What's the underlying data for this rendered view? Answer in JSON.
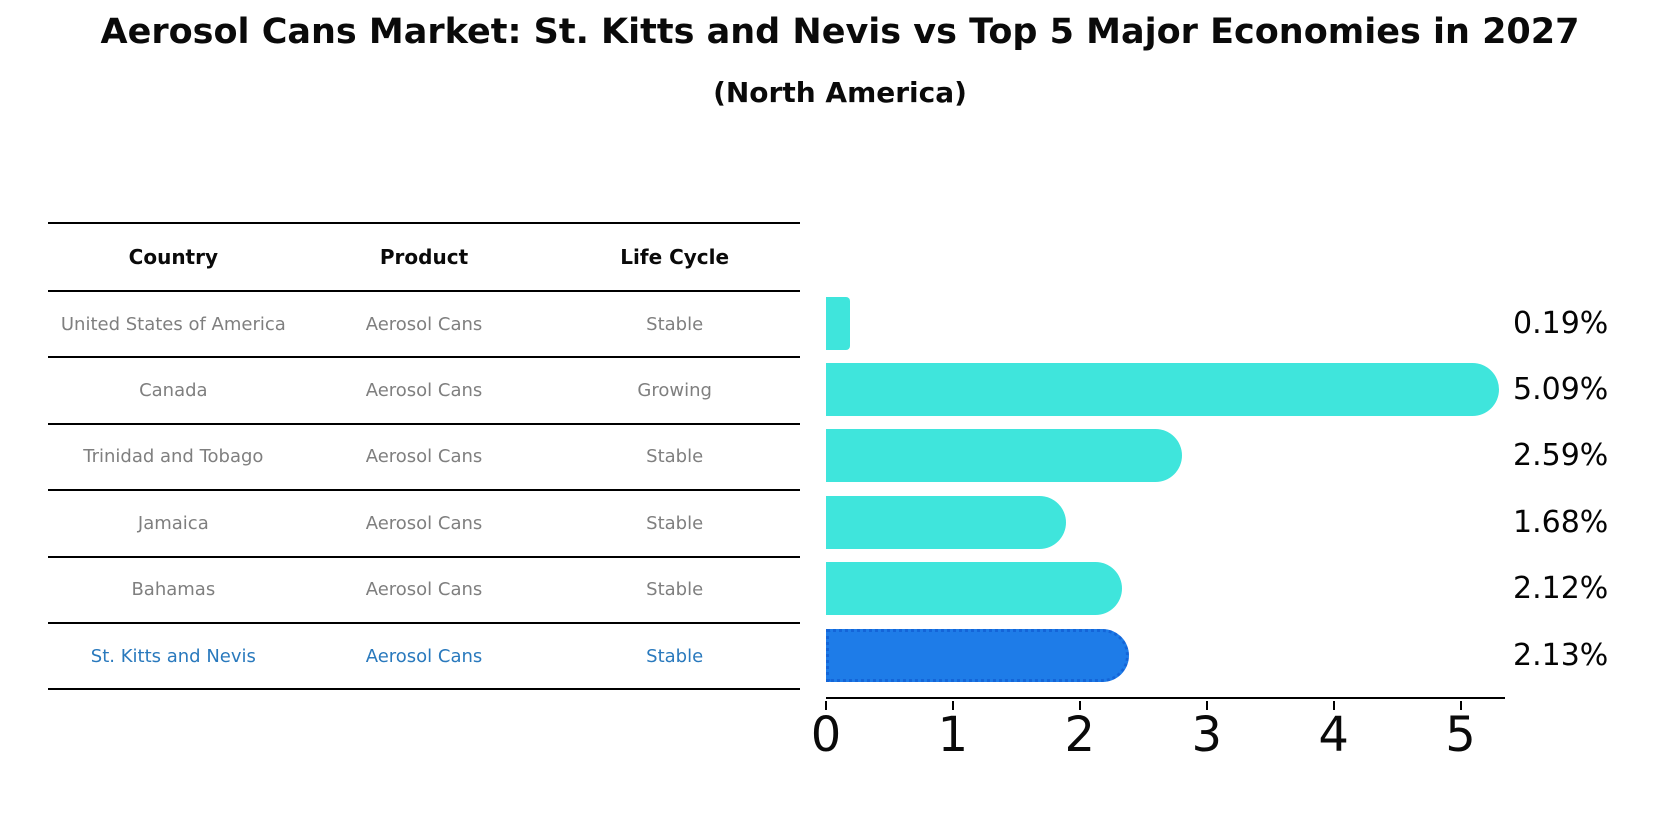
{
  "title": "Aerosol Cans Market: St. Kitts and Nevis vs Top 5 Major Economies in 2027",
  "subtitle": "(North America)",
  "table": {
    "headers": [
      "Country",
      "Product",
      "Life Cycle"
    ],
    "rows": [
      {
        "country": "United States of America",
        "product": "Aerosol Cans",
        "life_cycle": "Stable"
      },
      {
        "country": "Canada",
        "product": "Aerosol Cans",
        "life_cycle": "Growing"
      },
      {
        "country": "Trinidad and Tobago",
        "product": "Aerosol Cans",
        "life_cycle": "Stable"
      },
      {
        "country": "Jamaica",
        "product": "Aerosol Cans",
        "life_cycle": "Stable"
      },
      {
        "country": "Bahamas",
        "product": "Aerosol Cans",
        "life_cycle": "Stable"
      },
      {
        "country": "St. Kitts and Nevis",
        "product": "Aerosol Cans",
        "life_cycle": "Stable"
      }
    ],
    "highlight_row_index": 5
  },
  "chart_data": {
    "type": "bar",
    "orientation": "horizontal",
    "title": "Aerosol Cans Market: St. Kitts and Nevis vs Top 5 Major Economies in 2027",
    "subtitle": "(North America)",
    "categories": [
      "United States of America",
      "Canada",
      "Trinidad and Tobago",
      "Jamaica",
      "Bahamas",
      "St. Kitts and Nevis"
    ],
    "values": [
      0.19,
      5.09,
      2.59,
      1.68,
      2.12,
      2.13
    ],
    "value_labels": [
      "0.19%",
      "5.09%",
      "2.59%",
      "1.68%",
      "2.12%",
      "2.13%"
    ],
    "xlabel": "",
    "ylabel": "",
    "xlim": [
      0,
      5.35
    ],
    "xticks": [
      "0",
      "1",
      "2",
      "3",
      "4",
      "5"
    ],
    "grid": false,
    "legend": false,
    "highlight_index": 5,
    "bar_color": "#3FE5DC",
    "highlight_color": "#1E7CE8",
    "highlight_edge_color": "#1465D8"
  },
  "colors": {
    "row_text": "#7f7f7f",
    "header_text": "#0a0a0a",
    "highlight_text": "#2979bd",
    "axis": "#000000",
    "background": "#ffffff"
  }
}
